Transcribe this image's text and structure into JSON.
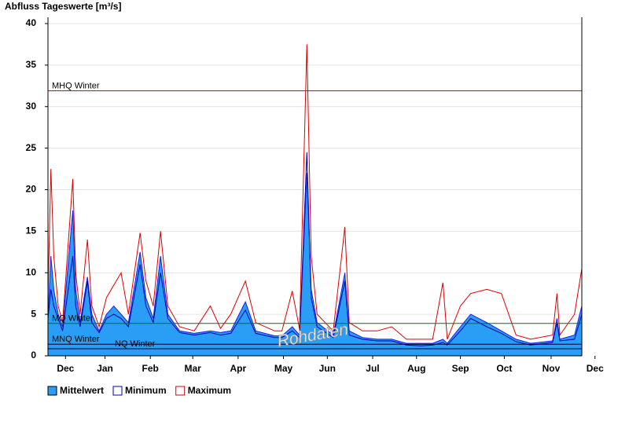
{
  "chart_data": {
    "type": "area",
    "title": "Abfluss Tageswerte [m³/s]",
    "watermark": "Rohdaten",
    "x": [
      0,
      2,
      4,
      7,
      10,
      17,
      19,
      22,
      27,
      30,
      35,
      40,
      45,
      50,
      55,
      63,
      67,
      72,
      77,
      82,
      90,
      100,
      111,
      118,
      125,
      135,
      142,
      155,
      160,
      167,
      172,
      177,
      180,
      184,
      195,
      203,
      206,
      215,
      225,
      235,
      245,
      255,
      263,
      270,
      273,
      282,
      289,
      300,
      310,
      320,
      330,
      345,
      348,
      350,
      360,
      365
    ],
    "series": [
      {
        "name": "Mittelwert",
        "color": "#2a9df4",
        "line": "#1a1aff",
        "values": [
          5,
          12,
          8,
          5,
          3.5,
          17.5,
          8,
          4,
          9.5,
          5,
          3,
          5,
          6,
          5,
          4,
          12.5,
          7,
          4.5,
          12,
          5,
          3,
          2.7,
          3,
          2.8,
          3,
          6.5,
          3,
          2.4,
          2.4,
          3.5,
          2.5,
          22,
          8,
          4,
          2.5,
          10,
          3,
          2.2,
          2,
          2,
          1.5,
          1.5,
          1.5,
          2,
          1.5,
          3.5,
          5,
          4,
          3,
          2,
          1.5,
          1.8,
          4.5,
          2,
          2.5,
          6
        ]
      },
      {
        "name": "Minimum",
        "color": "#0000aa",
        "values": [
          4.5,
          8,
          6,
          4.5,
          3,
          12,
          6,
          3.5,
          9,
          4,
          2.8,
          4.5,
          5,
          4.5,
          3.5,
          11,
          6,
          4,
          10,
          4.5,
          2.8,
          2.5,
          2.8,
          2.5,
          2.7,
          5.5,
          2.7,
          2.2,
          2.2,
          3,
          2.2,
          24.5,
          7,
          3.5,
          2.2,
          9,
          2.5,
          2,
          1.8,
          1.8,
          1.3,
          1.2,
          1.3,
          1.6,
          1.3,
          3,
          4.5,
          3.5,
          2.7,
          1.7,
          1.3,
          1.6,
          4,
          1.8,
          2,
          5
        ]
      },
      {
        "name": "Maximum",
        "color": "#dd0000",
        "values": [
          7,
          22.5,
          12,
          6,
          4,
          21.3,
          10,
          5,
          14,
          6,
          3.5,
          7,
          8.5,
          10,
          5,
          14.8,
          9,
          6,
          15,
          6,
          3.5,
          3,
          6,
          3.3,
          5,
          9,
          4,
          3,
          3,
          7.8,
          3.2,
          37.5,
          12,
          5,
          3,
          15.5,
          4,
          3,
          3,
          3.5,
          2,
          2,
          2,
          8.8,
          2,
          6,
          7.5,
          8,
          7.5,
          2.5,
          2,
          2.5,
          7.5,
          2.5,
          5,
          10.5
        ]
      }
    ],
    "reference_lines": [
      {
        "label": "MHQ Winter",
        "value": 31.9,
        "color": "#cc0000"
      },
      {
        "label": "MQ Winter",
        "value": 3.9,
        "color": "#007700"
      },
      {
        "label": "MNQ Winter",
        "value": 1.4,
        "color": "#000033"
      },
      {
        "label": "NQ Winter",
        "value": 0.85,
        "color": "#000033"
      }
    ],
    "xlim": [
      0,
      365
    ],
    "xticks": [
      {
        "value": 12,
        "label": "Dec"
      },
      {
        "value": 39,
        "label": "Jan"
      },
      {
        "value": 70,
        "label": "Feb"
      },
      {
        "value": 99,
        "label": "Mar"
      },
      {
        "value": 130,
        "label": "Apr"
      },
      {
        "value": 161,
        "label": "May"
      },
      {
        "value": 191,
        "label": "Jun"
      },
      {
        "value": 222,
        "label": "Jul"
      },
      {
        "value": 252,
        "label": "Aug"
      },
      {
        "value": 282,
        "label": "Sep"
      },
      {
        "value": 312,
        "label": "Oct"
      },
      {
        "value": 344,
        "label": "Nov"
      },
      {
        "value": 374,
        "label": "Dec"
      }
    ],
    "ylim": [
      0,
      40
    ],
    "yticks": [
      0,
      5,
      10,
      15,
      20,
      25,
      30,
      35,
      40
    ],
    "grid": true
  }
}
